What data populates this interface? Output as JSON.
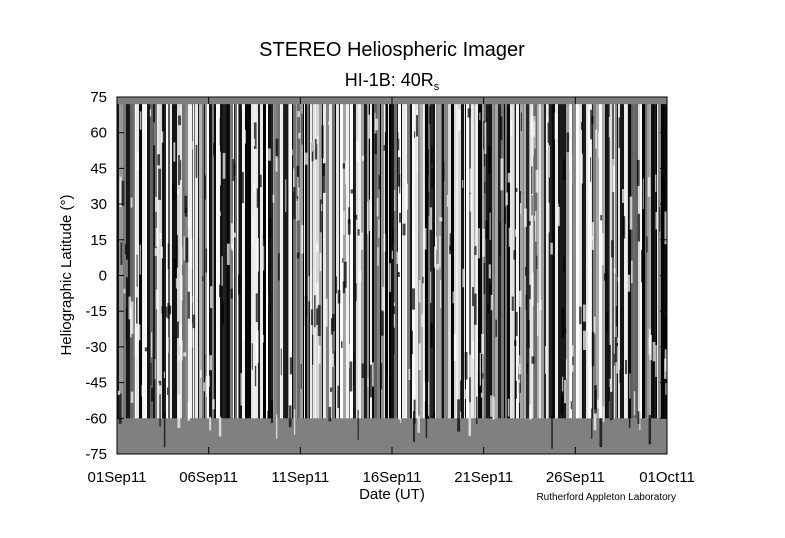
{
  "chart_data": {
    "type": "heatmap",
    "title": "STEREO Heliospheric Imager",
    "subtitle": "HI-1B: 40R",
    "subtitle_subscript": "s",
    "x_label": "Date (UT)",
    "y_label": "Heliographic Latitude (°)",
    "credit": "Rutherford Appleton Laboratory",
    "xlim": [
      "2011-09-01",
      "2011-10-01"
    ],
    "xticks": [
      {
        "value": "2011-09-01",
        "label": "01Sep11"
      },
      {
        "value": "2011-09-06",
        "label": "06Sep11"
      },
      {
        "value": "2011-09-11",
        "label": "11Sep11"
      },
      {
        "value": "2011-09-16",
        "label": "16Sep11"
      },
      {
        "value": "2011-09-21",
        "label": "21Sep11"
      },
      {
        "value": "2011-09-26",
        "label": "26Sep11"
      },
      {
        "value": "2011-10-01",
        "label": "01Oct11"
      }
    ],
    "ylim": [
      -75,
      75
    ],
    "yticks": [
      -75,
      -60,
      -45,
      -30,
      -15,
      0,
      15,
      30,
      45,
      60,
      75
    ],
    "data_ylim": [
      -60,
      72
    ],
    "no_data_color": "#808080"
  }
}
